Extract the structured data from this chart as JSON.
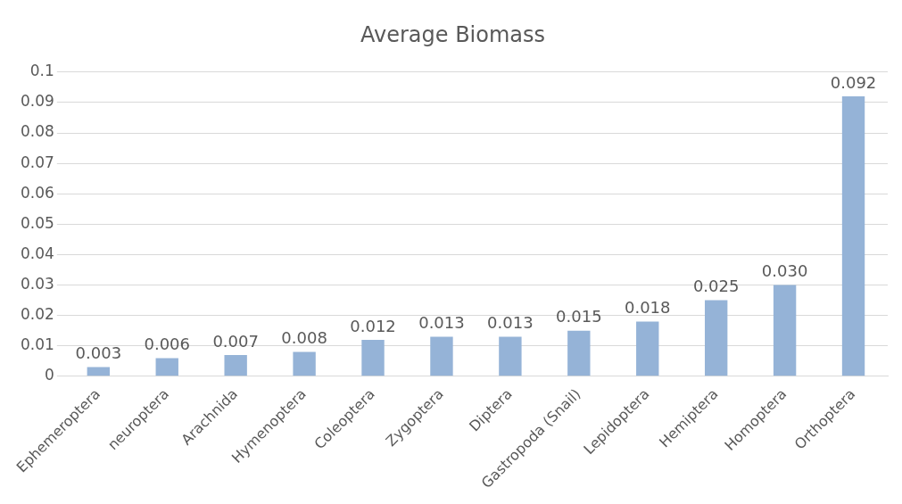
{
  "chart_data": {
    "type": "bar",
    "title": "Average Biomass",
    "categories": [
      "Ephemeroptera",
      "neuroptera",
      "Arachnida",
      "Hymenoptera",
      "Coleoptera",
      "Zygoptera",
      "Diptera",
      "Gastropoda (Snail)",
      "Lepidoptera",
      "Hemiptera",
      "Homoptera",
      "Orthoptera"
    ],
    "values": [
      0.003,
      0.006,
      0.007,
      0.008,
      0.012,
      0.013,
      0.013,
      0.015,
      0.018,
      0.025,
      0.03,
      0.092
    ],
    "value_labels": [
      "0.003",
      "0.006",
      "0.007",
      "0.008",
      "0.012",
      "0.013",
      "0.013",
      "0.015",
      "0.018",
      "0.025",
      "0.030",
      "0.092"
    ],
    "color": "#95b3d7",
    "ylim": [
      0,
      0.1
    ],
    "yticks": [
      0,
      0.01,
      0.02,
      0.03,
      0.04,
      0.05,
      0.06,
      0.07,
      0.08,
      0.09,
      0.1
    ],
    "grid": "y",
    "legend": false
  }
}
